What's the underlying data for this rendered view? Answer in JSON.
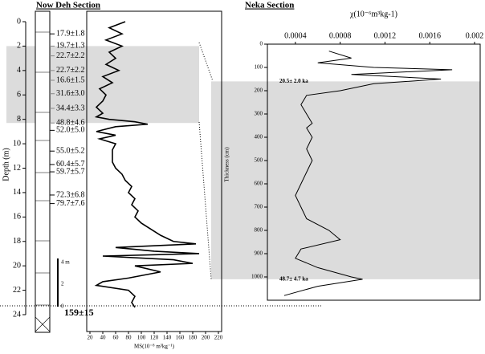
{
  "chart_data": [
    {
      "type": "line",
      "title": "Now Deh Section",
      "xlabel": "MS(10⁻⁸ m³kg⁻¹)",
      "ylabel": "Depth (m)",
      "xlim": [
        20,
        220
      ],
      "xticks": [
        20,
        40,
        60,
        80,
        100,
        120,
        140,
        160,
        180,
        200,
        220
      ],
      "ylim": [
        0,
        24
      ],
      "yticks": [
        0,
        2,
        4,
        6,
        8,
        10,
        12,
        14,
        16,
        18,
        20,
        22,
        24
      ],
      "shaded": [
        2,
        8.3
      ],
      "y": [
        0,
        0.5,
        1,
        1.5,
        2,
        2.5,
        3,
        3.5,
        4,
        4.5,
        5,
        5.5,
        6,
        6.5,
        7,
        7.5,
        7.8,
        8,
        8.2,
        8.4,
        8.6,
        9,
        9.3,
        9.6,
        10,
        10.5,
        11,
        11.5,
        12,
        12.5,
        13,
        13.5,
        14,
        14.5,
        15,
        15.5,
        16,
        16.5,
        17,
        17.5,
        18,
        18.2,
        18.5,
        18.8,
        19,
        19.2,
        19.5,
        19.8,
        20,
        20.5,
        21,
        21.3,
        21.6,
        22,
        22.5,
        23,
        23.4
      ],
      "series": [
        {
          "color": "#000000",
          "values": [
            75,
            50,
            70,
            45,
            70,
            50,
            60,
            45,
            65,
            40,
            55,
            35,
            45,
            40,
            30,
            40,
            30,
            50,
            90,
            110,
            60,
            30,
            60,
            35,
            60,
            55,
            55,
            55,
            60,
            70,
            75,
            85,
            80,
            90,
            85,
            95,
            90,
            100,
            115,
            130,
            150,
            185,
            60,
            120,
            190,
            40,
            150,
            180,
            90,
            130,
            80,
            40,
            30,
            80,
            90,
            85,
            90
          ]
        }
      ],
      "annotations": [
        {
          "text": "17.9±1.8",
          "y": 1
        },
        {
          "text": "19.7±1.3",
          "y": 2
        },
        {
          "text": "22.7±2.2",
          "y": 2.8
        },
        {
          "text": "22.7±2.2",
          "y": 4
        },
        {
          "text": "16.6±1.5",
          "y": 4.8
        },
        {
          "text": "31.6±3.0",
          "y": 5.9
        },
        {
          "text": "34.4±3.3",
          "y": 7.1
        },
        {
          "text": "48.8±4.6",
          "y": 8.3
        },
        {
          "text": "52.0±5.0",
          "y": 8.9
        },
        {
          "text": "55.0±5.2",
          "y": 10.6
        },
        {
          "text": "60.4±5.7",
          "y": 11.7
        },
        {
          "text": "59.7±5.7",
          "y": 12.3
        },
        {
          "text": "72.3±6.8",
          "y": 14.2
        },
        {
          "text": "79.7±7.6",
          "y": 14.9
        },
        {
          "text": "159±15",
          "y": 23.9
        }
      ],
      "scale_labels": [
        "4 m",
        "2",
        "0"
      ]
    },
    {
      "type": "line",
      "title": "Neka Section",
      "xlabel": "χ(10⁻⁶m³kg-1)",
      "ylabel": "Thickness (cm)",
      "xlim": [
        0.00015,
        0.002
      ],
      "xticks": [
        0.0004,
        0.0008,
        0.0012,
        0.0016,
        0.002
      ],
      "ylim": [
        0,
        1100
      ],
      "yticks": [
        0,
        100,
        200,
        300,
        400,
        500,
        600,
        700,
        800,
        900,
        1000
      ],
      "shaded": [
        160,
        1010
      ],
      "y": [
        30,
        60,
        80,
        100,
        110,
        130,
        150,
        170,
        200,
        220,
        260,
        300,
        340,
        360,
        400,
        450,
        500,
        550,
        600,
        650,
        700,
        750,
        800,
        840,
        880,
        920,
        960,
        1000,
        1010,
        1040,
        1080
      ],
      "series": [
        {
          "color": "#000000",
          "values": [
            0.0007,
            0.0009,
            0.0006,
            0.0011,
            0.0018,
            0.0009,
            0.0017,
            0.0011,
            0.0008,
            0.0005,
            0.00045,
            0.0005,
            0.00055,
            0.0005,
            0.00055,
            0.0005,
            0.00055,
            0.0005,
            0.00045,
            0.0004,
            0.00045,
            0.0005,
            0.0007,
            0.0008,
            0.00045,
            0.0004,
            0.0006,
            0.0009,
            0.001,
            0.0006,
            0.0003
          ]
        }
      ],
      "annotations": [
        {
          "text": "20.5± 2.0 ka",
          "y": 160
        },
        {
          "text": "48.7± 4.7 ka",
          "y": 1010
        }
      ]
    }
  ]
}
